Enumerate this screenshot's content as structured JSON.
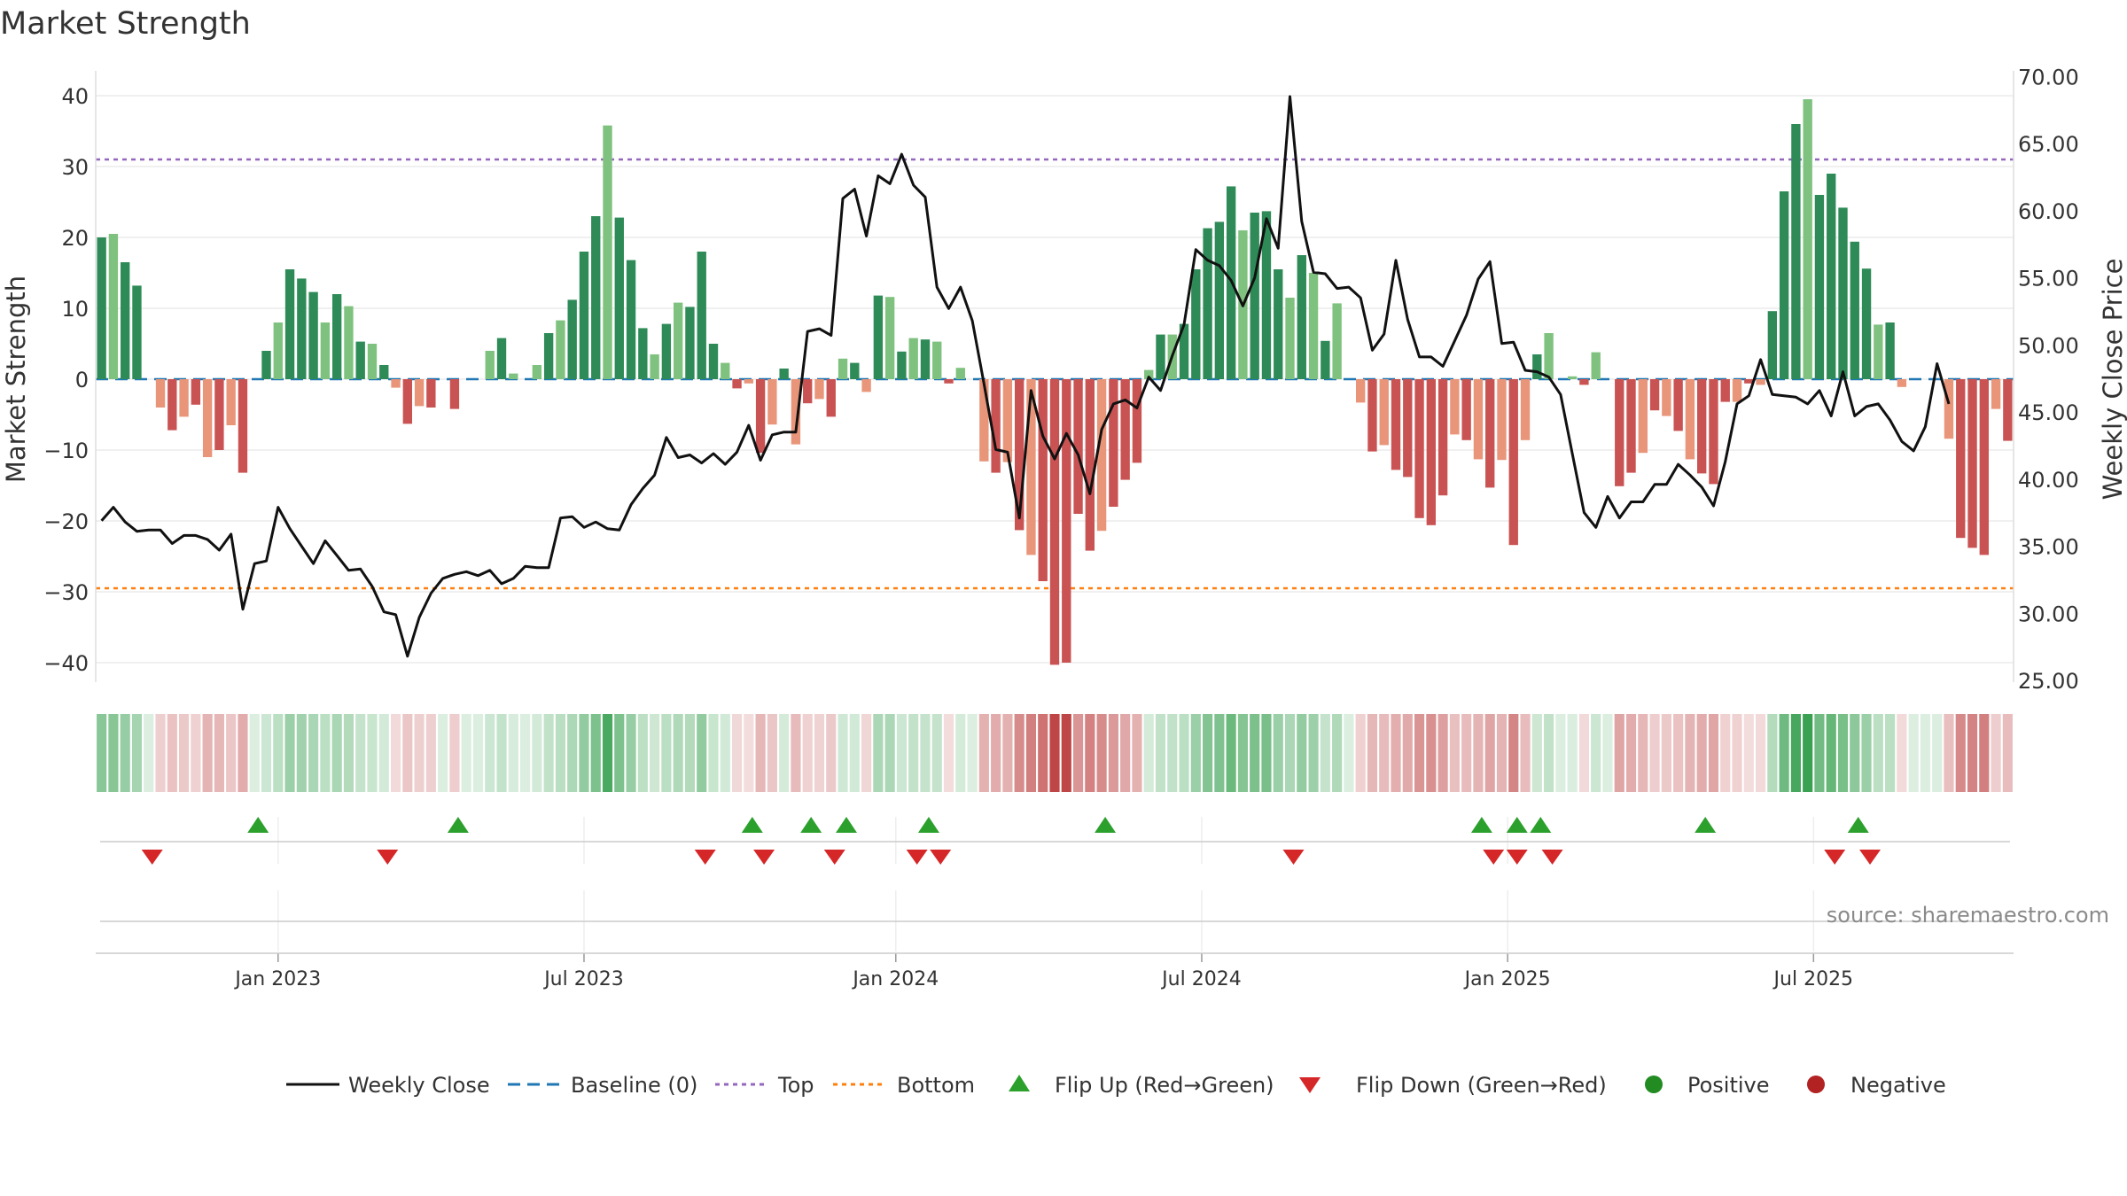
{
  "chart_data": {
    "type": "bar",
    "title": "Market Strength",
    "ylabel_left": "Market Strength",
    "ylabel_right": "Weekly Close Price",
    "ylim_left": [
      -42,
      43
    ],
    "ylim_right": [
      24,
      71
    ],
    "left_ticks": [
      "40",
      "30",
      "20",
      "10",
      "0",
      "−10",
      "−20",
      "−30",
      "−40"
    ],
    "left_tick_values": [
      40,
      30,
      20,
      10,
      0,
      -10,
      -20,
      -30,
      -40
    ],
    "right_ticks": [
      "70.00",
      "65.00",
      "60.00",
      "55.00",
      "50.00",
      "45.00",
      "40.00",
      "35.00",
      "30.00",
      "25.00"
    ],
    "right_tick_values": [
      70,
      65,
      60,
      55,
      50,
      45,
      40,
      35,
      30,
      25
    ],
    "x_ticks": [
      "Jan 2023",
      "Jul 2023",
      "Jan 2024",
      "Jul 2024",
      "Jan 2025",
      "Jul 2025"
    ],
    "x_tick_weeks": [
      15,
      41,
      67.5,
      93.5,
      119.5,
      145.5
    ],
    "top_level": 31,
    "bottom_level": -29.5,
    "grid": true,
    "legend_position": "bottom",
    "source": "source: sharemaestro.com",
    "strength": [
      20,
      20.5,
      16.5,
      13.2,
      0,
      -4,
      -7.2,
      -5.3,
      -3.6,
      -11,
      -10,
      -6.5,
      -13.2,
      0,
      4,
      8,
      15.5,
      14.2,
      12.3,
      8,
      12,
      10.3,
      5.3,
      5,
      2,
      -1.2,
      -6.3,
      -3.8,
      -4,
      0,
      -4.2,
      0,
      0,
      4,
      5.8,
      0.8,
      0,
      2,
      6.5,
      8.3,
      11.2,
      18,
      23,
      35.8,
      22.8,
      16.8,
      7.2,
      3.5,
      7.8,
      10.8,
      10.2,
      18,
      5,
      2.3,
      -1.3,
      -0.6,
      -10.4,
      -6.4,
      1.5,
      -9.2,
      -3.4,
      -2.8,
      -5.3,
      2.9,
      2.3,
      -1.8,
      11.8,
      11.6,
      3.9,
      5.8,
      5.6,
      5.3,
      -0.6,
      1.6,
      0,
      -11.6,
      -13.2,
      -11.7,
      -21.3,
      -24.8,
      -28.5,
      -40.3,
      -40,
      -19,
      -24.2,
      -21.4,
      -18,
      -14.2,
      -11.8,
      1.3,
      6.3,
      6.3,
      7.8,
      15.5,
      21.3,
      22.2,
      27.2,
      21,
      23.5,
      23.7,
      15.5,
      11.5,
      17.5,
      15,
      5.4,
      10.7,
      0,
      -3.3,
      -10.2,
      -9.3,
      -12.8,
      -13.8,
      -19.6,
      -20.6,
      -16.4,
      -7.8,
      -8.6,
      -11.3,
      -15.3,
      -11.4,
      -23.4,
      -8.6,
      3.5,
      6.5,
      0,
      0.4,
      -0.8,
      3.8,
      0,
      -15.1,
      -13.2,
      -10.4,
      -4.4,
      -5.2,
      -7.3,
      -11.3,
      -13.3,
      -14.8,
      -3.2,
      -3.2,
      -0.6,
      -0.8,
      9.6,
      26.5,
      36,
      39.5,
      26,
      29,
      24.2,
      19.4,
      15.6,
      7.7,
      8,
      -1.1,
      0,
      0,
      0,
      -8.4,
      -22.4,
      -23.8,
      -24.8,
      -4.2,
      -8.7
    ],
    "close": [
      36.9,
      37.9,
      36.8,
      36.1,
      36.2,
      36.2,
      35.2,
      35.8,
      35.8,
      35.5,
      34.7,
      35.9,
      30.3,
      33.7,
      33.9,
      37.9,
      36.3,
      35,
      33.7,
      35.4,
      34.3,
      33.2,
      33.3,
      32,
      30.1,
      29.9,
      26.8,
      29.7,
      31.5,
      32.6,
      32.9,
      33.1,
      32.8,
      33.2,
      32.2,
      32.6,
      33.5,
      33.4,
      33.4,
      37.1,
      37.2,
      36.4,
      36.8,
      36.3,
      36.2,
      38.1,
      39.3,
      40.3,
      43.1,
      41.6,
      41.8,
      41.2,
      41.9,
      41.1,
      42,
      44,
      41.4,
      43.3,
      43.5,
      43.5,
      51,
      51.2,
      50.7,
      60.9,
      61.6,
      58.1,
      62.6,
      62,
      64.2,
      61.9,
      61,
      54.3,
      52.7,
      54.3,
      51.8,
      47.1,
      42.2,
      42,
      37.1,
      46.6,
      43.2,
      41.5,
      43.4,
      41.8,
      38.9,
      43.7,
      45.6,
      45.9,
      45.3,
      47.6,
      46.6,
      49.2,
      51.5,
      57.1,
      56.3,
      55.9,
      54.8,
      52.9,
      55,
      59.4,
      57.2,
      68.5,
      59.2,
      55.4,
      55.3,
      54.2,
      54.3,
      53.5,
      49.6,
      50.8,
      56.3,
      51.9,
      49.1,
      49.1,
      48.4,
      50.3,
      52.2,
      54.9,
      56.2,
      50.1,
      50.2,
      48.1,
      48,
      47.6,
      46.3,
      41.9,
      37.5,
      36.4,
      38.7,
      37.1,
      38.3,
      38.3,
      39.6,
      39.6,
      41.1,
      40.3,
      39.4,
      38,
      41.3,
      45.6,
      46.2,
      48.9,
      46.3,
      46.2,
      46.1,
      45.6,
      46.6,
      44.7,
      48,
      44.7,
      45.4,
      45.6,
      44.4,
      42.8,
      42.1,
      43.9,
      48.6,
      45.6
    ],
    "flip_up_weeks": [
      13.3,
      30.3,
      55.3,
      60.3,
      63.3,
      70.3,
      85.3,
      117.3,
      120.3,
      122.3,
      136.3,
      149.3
    ],
    "flip_down_weeks": [
      4.3,
      24.3,
      51.3,
      56.3,
      62.3,
      69.3,
      71.3,
      101.3,
      118.3,
      120.3,
      123.3,
      147.3,
      150.3
    ],
    "colors": {
      "strong_green": "#2e8b57",
      "light_green": "#7fc27f",
      "strong_red": "#c95353",
      "light_red": "#e8957a",
      "baseline": "#1f77b4",
      "top_line": "#9467bd",
      "bottom_line": "#ff7f0e",
      "flip_up": "#2ca02c",
      "flip_down": "#d62728",
      "positive": "#228b22",
      "negative": "#b22222",
      "close_line": "#111111"
    }
  },
  "legend": {
    "weekly_close": "Weekly Close",
    "baseline": "Baseline (0)",
    "top": "Top",
    "bottom": "Bottom",
    "flip_up": "Flip Up (Red→Green)",
    "flip_down": "Flip Down (Green→Red)",
    "positive": "Positive",
    "negative": "Negative"
  }
}
